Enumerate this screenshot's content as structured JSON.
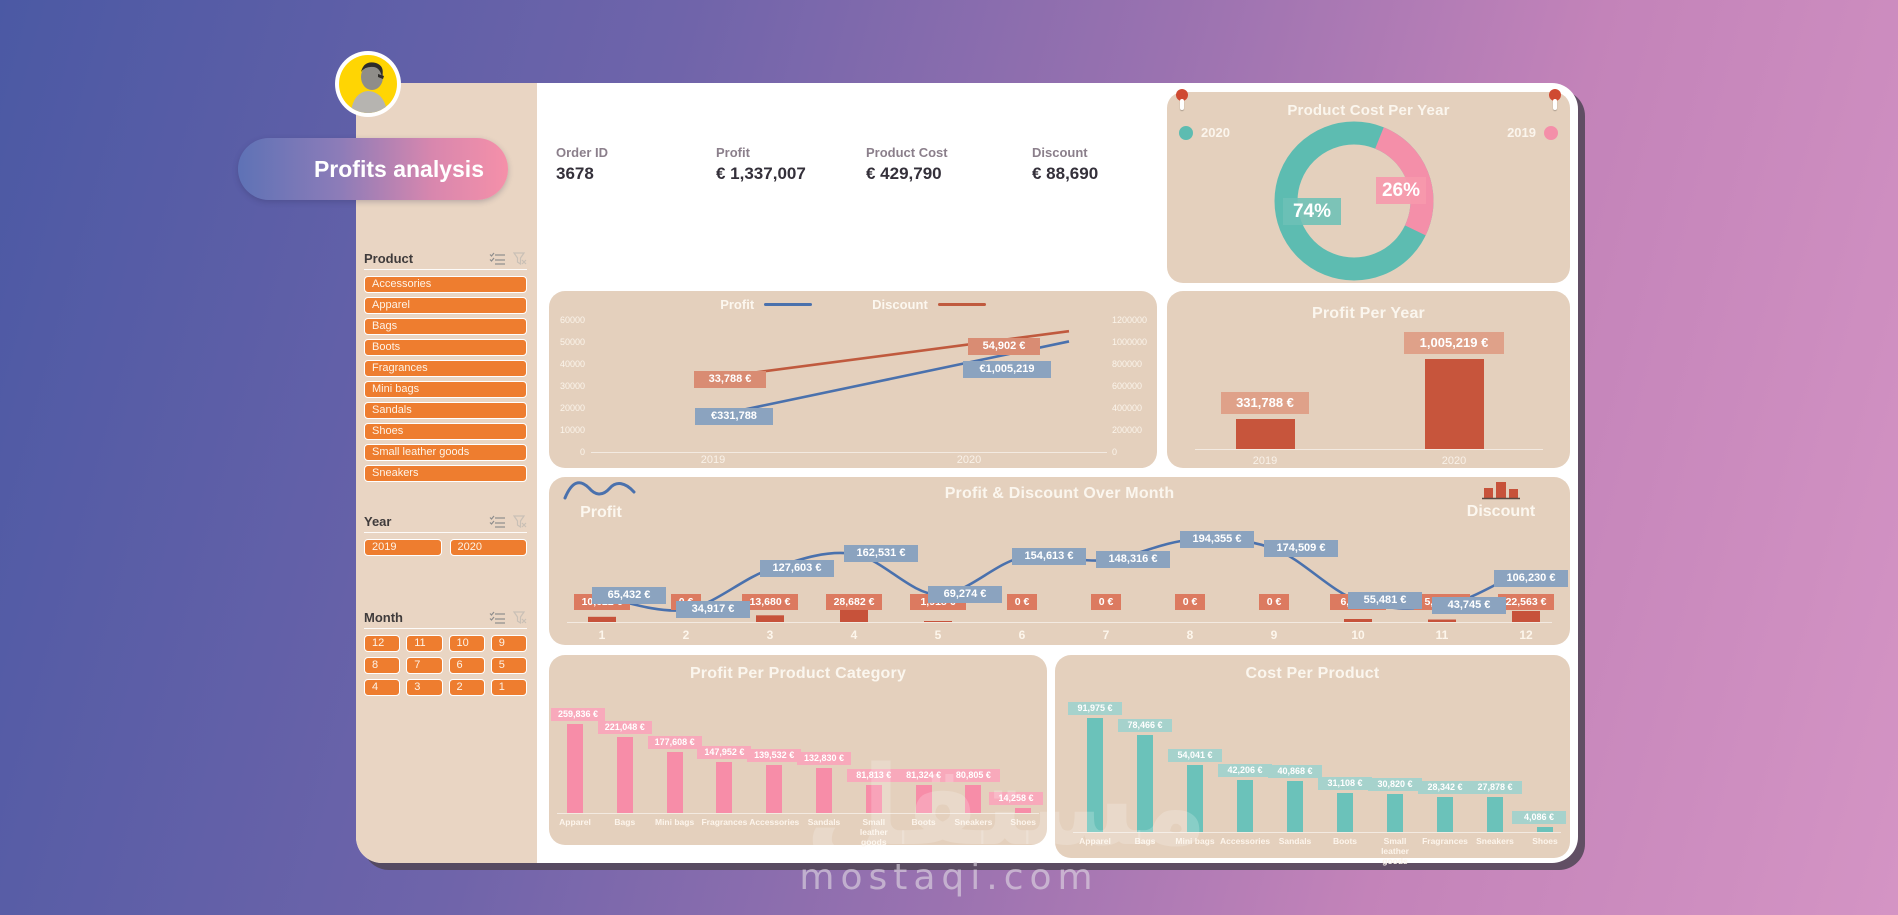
{
  "title": "Profits analysis",
  "watermark": {
    "arabic": "مستقل",
    "site": "mostaqi.com"
  },
  "colors": {
    "accent_orange": "#ee7d2f",
    "card_beige": "#e4d0bd",
    "sidebar_beige": "#e9d5c3",
    "teal": "#5dbcb1",
    "pink": "#f48fa9",
    "terracotta": "#c7553c",
    "blue_line": "#4a71ad",
    "red_line": "#c05a3e"
  },
  "sidebar": {
    "product": {
      "label": "Product",
      "items": [
        "Accessories",
        "Apparel",
        "Bags",
        "Boots",
        "Fragrances",
        "Mini bags",
        "Sandals",
        "Shoes",
        "Small leather goods",
        "Sneakers"
      ]
    },
    "year": {
      "label": "Year",
      "items": [
        "2019",
        "2020"
      ]
    },
    "month": {
      "label": "Month",
      "items": [
        "12",
        "11",
        "10",
        "9",
        "8",
        "7",
        "6",
        "5",
        "4",
        "3",
        "2",
        "1"
      ]
    }
  },
  "kpis": [
    {
      "label": "Order ID",
      "value": "3678"
    },
    {
      "label": "Profit",
      "value": "€ 1,337,007"
    },
    {
      "label": "Product Cost",
      "value": "€ 429,790"
    },
    {
      "label": "Discount",
      "value": "€ 88,690"
    }
  ],
  "chart_data": [
    {
      "id": "product-cost-per-year",
      "type": "pie",
      "title": "Product Cost Per Year",
      "legend_position": "top",
      "slices": [
        {
          "name": "2020",
          "pct": 74,
          "label": "74%",
          "color": "#5dbcb1"
        },
        {
          "name": "2019",
          "pct": 26,
          "label": "26%",
          "color": "#f48fa9"
        }
      ]
    },
    {
      "id": "profit-discount-per-year",
      "type": "line",
      "x": [
        "2019",
        "2020"
      ],
      "series": [
        {
          "name": "Profit",
          "axis": "right",
          "color": "#4a71ad",
          "values": [
            331788,
            1005219
          ],
          "labels": [
            "€331,788",
            "€1,005,219"
          ]
        },
        {
          "name": "Discount",
          "axis": "left",
          "color": "#c05a3e",
          "values": [
            33788,
            54902
          ],
          "labels": [
            "33,788 €",
            "54,902 €"
          ]
        }
      ],
      "y_left": {
        "max": 60000,
        "ticks": [
          "60000",
          "50000",
          "40000",
          "30000",
          "20000",
          "10000",
          "0"
        ]
      },
      "y_right": {
        "max": 1200000,
        "ticks": [
          "1200000",
          "1000000",
          "800000",
          "600000",
          "400000",
          "200000",
          "0"
        ]
      },
      "grid": false
    },
    {
      "id": "profit-per-year",
      "type": "bar",
      "title": "Profit Per Year",
      "categories": [
        "2019",
        "2020"
      ],
      "values": [
        331788,
        1005219
      ],
      "labels": [
        "331,788 €",
        "1,005,219 €"
      ],
      "bar_color": "#c7553c"
    },
    {
      "id": "profit-discount-over-month",
      "type": "line+bar",
      "title": "Profit & Discount Over Month",
      "categories": [
        "1",
        "2",
        "3",
        "4",
        "5",
        "6",
        "7",
        "8",
        "9",
        "10",
        "11",
        "12"
      ],
      "series": [
        {
          "name": "Profit",
          "type": "line",
          "color": "#4a71ad",
          "values": [
            65432,
            34917,
            127603,
            162531,
            69274,
            154613,
            148316,
            194355,
            174509,
            55481,
            43745,
            106230
          ],
          "labels": [
            "65,432 €",
            "34,917 €",
            "127,603 €",
            "162,531 €",
            "69,274 €",
            "154,613 €",
            "148,316 €",
            "194,355 €",
            "174,509 €",
            "55,481 €",
            "43,745 €",
            "106,230 €"
          ]
        },
        {
          "name": "Discount",
          "type": "bar",
          "color": "#c7523a",
          "values": [
            10622,
            0,
            13680,
            28682,
            1918,
            0,
            0,
            0,
            0,
            6141,
            5085,
            22563
          ],
          "labels": [
            "10,622 €",
            "0 €",
            "13,680 €",
            "28,682 €",
            "1,918 €",
            "0 €",
            "0 €",
            "0 €",
            "0 €",
            "6,141 €",
            "5,085 €",
            "22,563 €"
          ]
        }
      ]
    },
    {
      "id": "profit-per-product-category",
      "type": "bar",
      "title": "Profit Per Product Category",
      "categories": [
        "Apparel",
        "Bags",
        "Mini bags",
        "Fragrances",
        "Accessories",
        "Sandals",
        "Small leather goods",
        "Boots",
        "Sneakers",
        "Shoes"
      ],
      "values": [
        259836,
        221048,
        177608,
        147952,
        139532,
        132830,
        81813,
        81324,
        80805,
        14258
      ],
      "labels": [
        "259,836 €",
        "221,048 €",
        "177,608 €",
        "147,952 €",
        "139,532 €",
        "132,830 €",
        "81,813 €",
        "81,324 €",
        "80,805 €",
        "14,258 €"
      ],
      "bar_color": "#f78da8"
    },
    {
      "id": "cost-per-product",
      "type": "bar",
      "title": "Cost Per Product",
      "categories": [
        "Apparel",
        "Bags",
        "Mini bags",
        "Accessories",
        "Sandals",
        "Boots",
        "Small leather goods",
        "Fragrances",
        "Sneakers",
        "Shoes"
      ],
      "values": [
        91975,
        78466,
        54041,
        42206,
        40868,
        31108,
        30820,
        28342,
        27878,
        4086
      ],
      "labels": [
        "91,975 €",
        "78,466 €",
        "54,041 €",
        "42,206 €",
        "40,868 €",
        "31,108 €",
        "30,820 €",
        "28,342 €",
        "27,878 €",
        "4,086 €"
      ],
      "bar_color": "#6bc2ba"
    }
  ]
}
